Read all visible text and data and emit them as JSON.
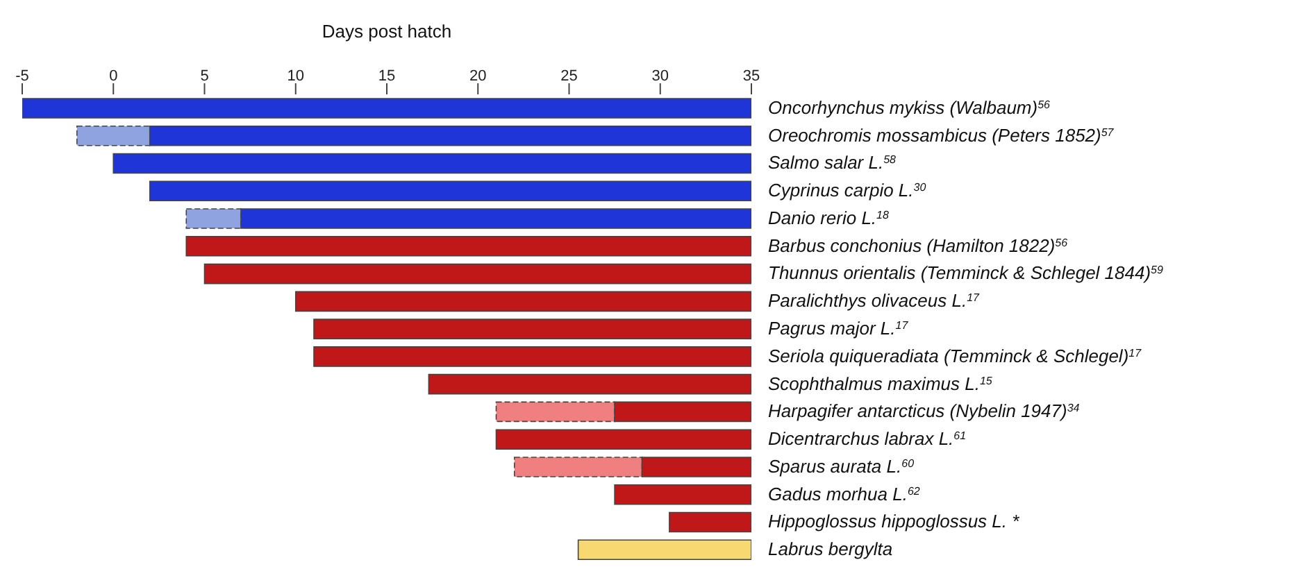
{
  "chart_data": {
    "type": "bar",
    "orientation": "horizontal",
    "xlabel": "Days post hatch",
    "categories": [
      "Oncorhynchus mykiss (Walbaum)$^{56}$",
      "Oreochromis mossambicus (Peters 1852)$^{57}$",
      "Salmo salar L.$^{58}$",
      "Cyprinus carpio L.$^{30}$",
      "Danio rerio L.$^{18}$",
      "Barbus conchonius (Hamilton 1822)$^{56}$",
      "Thunnus orientalis (Temminck & Schlegel 1844)$^{59}$",
      "Paralichthys olivaceus L.$^{17}$",
      "Pagrus major L.$^{17}$",
      "Seriola quiqueradiata (Temminck & Schlegel)$^{17}$",
      "Scophthalmus maximus L.$^{15}$",
      "Harpagifer antarcticus (Nybelin 1947)$^{34}$",
      "Dicentrarchus labrax L.$^{61}$",
      "Sparus aurata L.$^{60}$",
      "Gadus morhua L.$^{62}$",
      "Hippoglossus hippoglossus L. *",
      "Labrus bergylta"
    ],
    "series": [
      {
        "line_style": "dashed",
        "colors": [
          "#8fa3e0",
          "#8fa3e0",
          "#8fa3e0",
          "#8fa3e0",
          "#8fa3e0",
          "#f08080",
          "#f08080",
          "#f08080",
          "#f08080",
          "#f08080",
          "#f08080",
          "#f08080",
          "#f08080",
          "#f08080",
          "#f08080",
          "#f08080",
          "#f08080"
        ],
        "base": [
          null,
          -2,
          null,
          null,
          4,
          null,
          null,
          null,
          null,
          null,
          null,
          21,
          null,
          22,
          null,
          null,
          null
        ],
        "values": [
          null,
          4,
          null,
          null,
          3,
          null,
          null,
          null,
          null,
          null,
          null,
          6.5,
          null,
          7,
          null,
          null,
          null
        ]
      },
      {
        "line_style": "solid",
        "colors": [
          "#1f35d8",
          "#1f35d8",
          "#1f35d8",
          "#1f35d8",
          "#1f35d8",
          "#c01818",
          "#c01818",
          "#c01818",
          "#c01818",
          "#c01818",
          "#c01818",
          "#c01818",
          "#c01818",
          "#c01818",
          "#c01818",
          "#c01818",
          "#f8d870"
        ],
        "base": [
          -5,
          2,
          0,
          2,
          7,
          4,
          5,
          10,
          11,
          11,
          17.3,
          27.5,
          21,
          29,
          27.5,
          30.5,
          25.5
        ],
        "values": [
          40,
          33,
          35,
          33,
          28,
          31,
          30,
          25,
          24,
          24,
          17.7,
          7.5,
          14,
          6,
          7.5,
          4.5,
          9.5
        ]
      }
    ],
    "xlim": [
      -5,
      35
    ],
    "xticks": [
      -5,
      0,
      5,
      10,
      15,
      20,
      25,
      30,
      35
    ]
  }
}
